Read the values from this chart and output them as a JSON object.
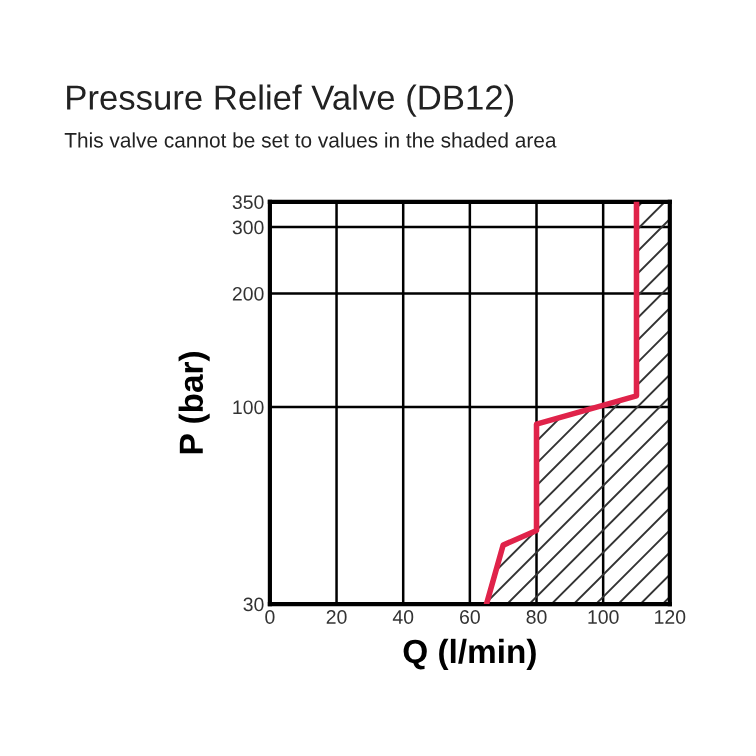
{
  "chart_data": {
    "type": "line",
    "title": "Pressure Relief Valve (DB12)",
    "subtitle": "This valve cannot be set to values in the shaded area",
    "xlabel": "Q (l/min)",
    "ylabel": "P (bar)",
    "series": [
      {
        "color": "#e0234a",
        "x": [
          65,
          70,
          80,
          80,
          110,
          110
        ],
        "values": [
          30,
          43,
          47,
          90,
          107,
          350
        ]
      }
    ],
    "xlim": [
      0,
      120
    ],
    "xticks": [
      0,
      20,
      40,
      60,
      80,
      100,
      120
    ],
    "ylim": [
      30,
      350
    ],
    "yticks": [
      30,
      100,
      200,
      300,
      350
    ],
    "log": "y",
    "grid": true
  }
}
